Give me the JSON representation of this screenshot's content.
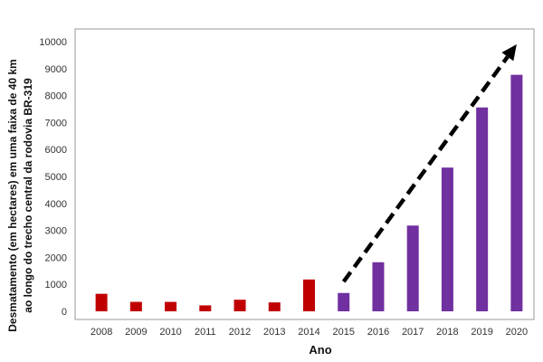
{
  "chart_data": {
    "type": "bar",
    "title": "",
    "xlabel": "Ano",
    "ylabel_line1": "Desmatamento (em hectares) em uma faixa de 40 km",
    "ylabel_line2": "ao longo do trecho central da rodovia BR-319",
    "categories": [
      "2008",
      "2009",
      "2010",
      "2011",
      "2012",
      "2013",
      "2014",
      "2015",
      "2016",
      "2017",
      "2018",
      "2019",
      "2020"
    ],
    "values": [
      650,
      350,
      350,
      220,
      430,
      330,
      1180,
      680,
      1820,
      3180,
      5330,
      7560,
      8770
    ],
    "colors": [
      "#c00000",
      "#c00000",
      "#c00000",
      "#c00000",
      "#c00000",
      "#c00000",
      "#c00000",
      "#7030a0",
      "#7030a0",
      "#7030a0",
      "#7030a0",
      "#7030a0",
      "#7030a0"
    ],
    "ylim": [
      0,
      10000
    ],
    "yticks": [
      0,
      1000,
      2000,
      3000,
      4000,
      5000,
      6000,
      7000,
      8000,
      9000,
      10000
    ],
    "grid": false,
    "trend_arrow": {
      "from": [
        "2015",
        1100
      ],
      "to": [
        "2020",
        9900
      ],
      "style": "dashed",
      "color": "#000000"
    }
  }
}
